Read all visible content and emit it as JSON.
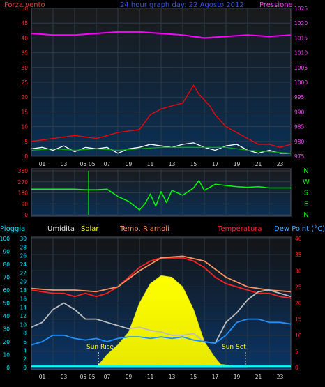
{
  "chart_data": [
    {
      "type": "line",
      "panel": "wind-pressure",
      "title": "24 hour graph day: 22 Agosto 2012",
      "left_label": "Forza vento",
      "right_label": "Pressione",
      "left_ticks": [
        "50",
        "45",
        "40",
        "35",
        "30",
        "25",
        "20",
        "15",
        "10",
        "5",
        "0"
      ],
      "right_ticks": [
        "1025",
        "1020",
        "1015",
        "1010",
        "1005",
        "1000",
        "995",
        "990",
        "985",
        "980",
        "975"
      ],
      "x_ticks": [
        "01",
        "03",
        "05",
        "05",
        "07",
        "09",
        "11",
        "13",
        "15",
        "17",
        "19",
        "21",
        "23"
      ],
      "ylim_left": [
        0,
        50
      ],
      "ylim_right": [
        975,
        1025
      ],
      "x_range_hours": [
        0,
        24
      ],
      "series": [
        {
          "color": "#ff00ff",
          "axis": "right",
          "x": [
            0,
            2,
            4,
            6,
            8,
            10,
            12,
            14,
            16,
            18,
            20,
            22,
            24
          ],
          "values": [
            1016.5,
            1016,
            1016,
            1016.5,
            1017,
            1017,
            1016.5,
            1016,
            1015,
            1015.5,
            1016,
            1015.5,
            1016
          ]
        },
        {
          "color": "#ff0000",
          "axis": "left",
          "x": [
            0,
            2,
            4,
            6,
            8,
            10,
            11,
            12,
            13,
            14,
            15,
            15.5,
            16,
            16.5,
            17,
            18,
            19,
            20,
            21,
            22,
            23,
            24
          ],
          "values": [
            5,
            6,
            7,
            6,
            8,
            9,
            14,
            16,
            17,
            18,
            24,
            21,
            19,
            17,
            14,
            10,
            8,
            6,
            4,
            4,
            3,
            4
          ]
        },
        {
          "color": "#ffffff",
          "axis": "left",
          "x": [
            0,
            1,
            2,
            3,
            4,
            5,
            6,
            7,
            8,
            9,
            10,
            11,
            12,
            13,
            14,
            15,
            16,
            17,
            18,
            19,
            20,
            21,
            22,
            23,
            24
          ],
          "values": [
            2.5,
            3,
            2,
            3.5,
            1.5,
            3,
            2.5,
            3,
            1,
            2.5,
            3,
            4,
            3.5,
            3,
            4,
            4.5,
            3,
            2,
            3.5,
            4,
            2,
            1,
            2,
            1,
            1
          ]
        },
        {
          "color": "#00aa00",
          "axis": "left",
          "x": [
            0,
            2,
            4,
            6,
            8,
            10,
            12,
            14,
            16,
            18,
            20,
            22,
            24
          ],
          "values": [
            2,
            2.5,
            2,
            2.5,
            2,
            2.5,
            3,
            3,
            3,
            3,
            2,
            1.5,
            1
          ]
        }
      ]
    },
    {
      "type": "line",
      "panel": "wind-direction",
      "left_ticks": [
        "360",
        "270",
        "180",
        "90",
        "0"
      ],
      "right_ticks": [
        "N",
        "W",
        "S",
        "E",
        "N"
      ],
      "ylim": [
        0,
        360
      ],
      "series": [
        {
          "color": "#00ff00",
          "x": [
            0,
            1,
            2,
            3,
            4,
            5,
            6,
            7,
            8,
            9,
            10,
            10.5,
            11,
            11.5,
            12,
            12.5,
            13,
            14,
            15,
            15.5,
            16,
            17,
            18,
            19,
            20,
            21,
            22,
            23,
            24
          ],
          "values": [
            210,
            210,
            210,
            210,
            210,
            205,
            205,
            210,
            150,
            110,
            40,
            90,
            170,
            70,
            190,
            100,
            200,
            160,
            220,
            280,
            200,
            250,
            240,
            230,
            225,
            230,
            220,
            220,
            220
          ]
        }
      ]
    },
    {
      "type": "line",
      "panel": "temperature-solar",
      "legend": [
        "Pioggia",
        "Umidita",
        "Solar",
        "Temp. Riarnoli",
        "Temperatura",
        "Dew Point (°C)"
      ],
      "rain_ticks": [
        "100",
        "90",
        "80",
        "70",
        "60",
        "50",
        "40",
        "30",
        "20",
        "10",
        "0"
      ],
      "hum_ticks": [
        "30",
        "28",
        "26",
        "24",
        "22",
        "20",
        "18",
        "16",
        "14",
        "12",
        "10",
        "8",
        "6",
        "4",
        "2",
        "0"
      ],
      "temp_ticks": [
        "40",
        "35",
        "30",
        "25",
        "20",
        "15",
        "10",
        "5",
        "0"
      ],
      "ylim_temp": [
        0,
        40
      ],
      "annotations": [
        "Sun Rise",
        "Sun Set"
      ],
      "sunrise_hour": 6.2,
      "sunset_hour": 19.8,
      "series": [
        {
          "name": "Solar",
          "color": "#ffff00",
          "type": "area",
          "x": [
            6,
            6.5,
            7,
            8,
            9,
            10,
            11,
            12,
            13,
            14,
            15,
            16,
            17,
            17.5,
            18,
            19,
            20
          ],
          "values": [
            0,
            2,
            4,
            7,
            11,
            20,
            26,
            28.5,
            28,
            25,
            18,
            8,
            3,
            1,
            0.8,
            0.3,
            0
          ]
        },
        {
          "name": "Temperatura",
          "color": "#ff2020",
          "x": [
            0,
            1,
            2,
            3,
            4,
            5,
            6,
            7,
            8,
            9,
            10,
            11,
            12,
            13,
            14,
            15,
            16,
            17,
            18,
            19,
            20,
            21,
            22,
            23,
            24
          ],
          "values": [
            24,
            23.5,
            23,
            23,
            22,
            23,
            22,
            23,
            25,
            28,
            31,
            33,
            34,
            34,
            34,
            33,
            31,
            28,
            26,
            25,
            24,
            23,
            23,
            22,
            21.5
          ]
        },
        {
          "name": "Temp. Riarnoli",
          "color": "#ff9060",
          "x": [
            0,
            2,
            4,
            6,
            8,
            10,
            12,
            14,
            16,
            18,
            20,
            22,
            24
          ],
          "values": [
            24.5,
            24,
            24,
            23.5,
            25,
            30,
            34,
            34.5,
            33,
            28,
            25,
            24,
            23.5
          ]
        },
        {
          "name": "Umidita",
          "color": "#bbbbbb",
          "x": [
            0,
            1,
            2,
            3,
            4,
            5,
            6,
            7,
            8,
            9,
            10,
            11,
            12,
            13,
            14,
            15,
            16,
            17,
            18,
            19,
            20,
            21,
            22,
            23,
            24
          ],
          "values": [
            12.5,
            14,
            18,
            20,
            18,
            15,
            15,
            14,
            13,
            12,
            12.5,
            11.5,
            11,
            10,
            10,
            10.5,
            8,
            7.5,
            14,
            17,
            21,
            23.5,
            24,
            23,
            22
          ]
        },
        {
          "name": "Dew Point (°C)",
          "color": "#1e90ff",
          "x": [
            0,
            1,
            2,
            3,
            4,
            5,
            6,
            7,
            8,
            9,
            10,
            11,
            12,
            13,
            14,
            15,
            16,
            17,
            18,
            19,
            20,
            21,
            22,
            23,
            24
          ],
          "values": [
            7,
            8,
            10,
            10,
            9,
            8.5,
            9,
            8,
            9,
            9.5,
            9.5,
            9,
            9.5,
            9,
            9.5,
            8.5,
            8,
            7.5,
            10,
            14,
            15,
            15,
            14,
            14,
            13.5
          ]
        },
        {
          "name": "Pioggia",
          "color": "#00ffff",
          "x": [
            0,
            24
          ],
          "values": [
            0.3,
            0.3
          ]
        }
      ]
    }
  ]
}
